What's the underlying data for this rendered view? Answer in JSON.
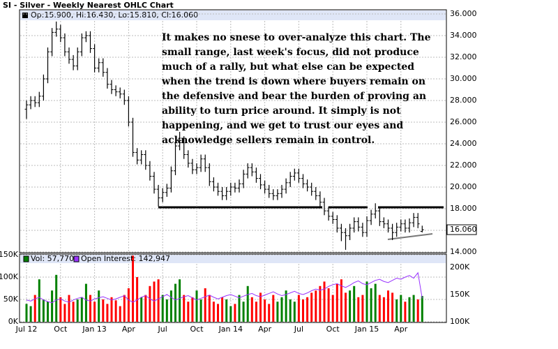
{
  "chart_data": [
    {
      "type": "ohlc",
      "title": "SI - Silver - Weekly Nearest OHLC Chart",
      "header": "Op:15.900, Hi:16.430, Lo:15.810, Cl:16.060",
      "last_label": "16.060",
      "color": "#000000",
      "annotation": "It makes no snese to over-analyze this chart.  The small range, last week's focus, did not produce much of a rally, but what else can be expected when the trend is down where buyers remain on the defensive and bear the burden of proving an ability to turn price around.  It simply is not happening, and we get to trust our eyes and acknowledge sellers remain in control.",
      "ylim": [
        14,
        36
      ],
      "yticks": [
        {
          "value": 14,
          "label": "14.000"
        },
        {
          "value": 16,
          "label": "16.000"
        },
        {
          "value": 18,
          "label": "18.000"
        },
        {
          "value": 20,
          "label": "20.000"
        },
        {
          "value": 22,
          "label": "22.000"
        },
        {
          "value": 24,
          "label": "24.000"
        },
        {
          "value": 26,
          "label": "26.000"
        },
        {
          "value": 28,
          "label": "28.000"
        },
        {
          "value": 30,
          "label": "30.000"
        },
        {
          "value": 32,
          "label": "32.000"
        },
        {
          "value": 34,
          "label": "34.000"
        },
        {
          "value": 36,
          "label": "36.000"
        }
      ],
      "open": [
        27.2,
        27.6,
        28.0,
        27.8,
        28.4,
        30.0,
        32.5,
        34.3,
        34.6,
        33.8,
        32.5,
        31.8,
        31.2,
        32.5,
        33.8,
        34.0,
        32.8,
        31.0,
        31.5,
        30.6,
        29.5,
        29.0,
        28.8,
        28.6,
        28.0,
        26.0,
        23.2,
        22.5,
        23.0,
        22.0,
        21.0,
        19.8,
        19.0,
        19.5,
        19.9,
        21.5,
        23.8,
        24.3,
        23.0,
        22.2,
        21.6,
        21.8,
        22.6,
        21.8,
        20.5,
        20.0,
        19.6,
        19.2,
        19.6,
        20.0,
        19.9,
        20.3,
        21.2,
        21.8,
        21.4,
        20.8,
        20.2,
        19.8,
        19.4,
        19.2,
        19.4,
        19.8,
        20.4,
        21.0,
        21.3,
        20.8,
        20.3,
        20.0,
        19.6,
        19.2,
        18.6,
        17.8,
        17.3,
        17.0,
        16.2,
        15.8,
        15.5,
        16.2,
        16.8,
        16.3,
        15.8,
        16.9,
        17.5,
        17.8,
        16.8,
        16.6,
        16.2,
        15.8,
        16.3,
        16.6,
        16.2,
        16.7,
        17.2,
        15.9
      ],
      "high": [
        28.0,
        28.4,
        28.4,
        28.8,
        30.4,
        32.9,
        34.7,
        35.3,
        35.0,
        34.2,
        32.9,
        32.2,
        32.9,
        34.2,
        34.4,
        34.4,
        33.2,
        31.9,
        31.9,
        31.0,
        29.9,
        29.4,
        29.2,
        29.0,
        28.4,
        26.4,
        23.6,
        23.4,
        23.4,
        22.4,
        21.4,
        20.2,
        19.9,
        20.3,
        21.9,
        24.2,
        25.1,
        24.7,
        23.4,
        22.6,
        22.2,
        23.0,
        23.0,
        22.2,
        20.9,
        20.4,
        20.0,
        20.0,
        20.4,
        20.4,
        20.7,
        21.6,
        22.2,
        22.2,
        21.8,
        21.2,
        20.6,
        20.2,
        19.8,
        19.8,
        20.2,
        20.8,
        21.4,
        21.7,
        21.7,
        21.2,
        20.7,
        20.4,
        20.0,
        19.6,
        19.0,
        18.2,
        17.7,
        17.4,
        16.6,
        16.2,
        16.6,
        17.2,
        17.2,
        16.7,
        17.3,
        17.9,
        18.5,
        18.2,
        17.2,
        17.0,
        16.6,
        16.7,
        17.0,
        17.0,
        17.1,
        17.6,
        17.6,
        16.43
      ],
      "low": [
        26.3,
        27.2,
        27.4,
        27.4,
        28.0,
        29.6,
        32.1,
        33.9,
        33.4,
        32.1,
        31.4,
        30.8,
        30.8,
        32.1,
        33.4,
        32.4,
        30.6,
        30.6,
        30.2,
        29.1,
        28.6,
        28.4,
        28.2,
        27.6,
        25.6,
        22.8,
        22.1,
        22.1,
        21.6,
        20.6,
        19.4,
        18.2,
        18.6,
        19.1,
        19.5,
        21.1,
        23.4,
        22.6,
        21.8,
        21.2,
        21.2,
        21.4,
        21.4,
        20.1,
        19.6,
        19.2,
        18.8,
        18.8,
        19.2,
        19.5,
        19.5,
        19.9,
        20.8,
        21.0,
        20.4,
        19.8,
        19.4,
        19.0,
        18.8,
        18.8,
        19.0,
        19.4,
        20.0,
        20.6,
        20.4,
        19.9,
        19.6,
        19.2,
        18.8,
        18.2,
        17.4,
        16.9,
        16.6,
        15.8,
        15.0,
        14.2,
        15.1,
        15.8,
        15.9,
        15.4,
        15.4,
        16.5,
        17.1,
        16.4,
        16.2,
        15.8,
        15.1,
        15.4,
        15.9,
        15.8,
        15.8,
        16.3,
        16.2,
        15.81
      ],
      "close": [
        27.6,
        28.0,
        27.8,
        28.4,
        30.0,
        32.5,
        34.3,
        34.6,
        33.8,
        32.5,
        31.8,
        31.2,
        32.5,
        33.8,
        34.0,
        32.8,
        31.0,
        31.5,
        30.6,
        29.5,
        29.0,
        28.8,
        28.6,
        28.0,
        26.0,
        23.2,
        22.5,
        23.0,
        22.0,
        21.0,
        19.8,
        19.0,
        19.5,
        19.9,
        21.5,
        23.8,
        24.3,
        23.0,
        22.2,
        21.6,
        21.8,
        22.6,
        21.8,
        20.5,
        20.0,
        19.6,
        19.2,
        19.6,
        20.0,
        19.9,
        20.3,
        21.2,
        21.8,
        21.4,
        20.8,
        20.2,
        19.8,
        19.4,
        19.2,
        19.4,
        19.8,
        20.4,
        21.0,
        21.3,
        20.8,
        20.3,
        20.0,
        19.6,
        19.2,
        18.6,
        17.8,
        17.3,
        17.0,
        16.2,
        15.8,
        15.5,
        16.2,
        16.8,
        16.3,
        15.8,
        16.9,
        17.5,
        17.8,
        16.8,
        16.6,
        16.2,
        15.8,
        16.3,
        16.6,
        16.2,
        16.7,
        17.2,
        16.6,
        16.06
      ]
    },
    {
      "type": "bar",
      "up_color": "#008000",
      "down_color": "#ff0000",
      "ylim": [
        0,
        150000
      ],
      "yticks": [
        {
          "value": 0,
          "label": "0K"
        },
        {
          "value": 50000,
          "label": "50K"
        },
        {
          "value": 100000,
          "label": "100K"
        },
        {
          "value": 150000,
          "label": "150K"
        }
      ],
      "y2lim": [
        100000,
        223000
      ],
      "y2ticks": [
        {
          "value": 100000,
          "label": "100K"
        },
        {
          "value": 150000,
          "label": "150K"
        },
        {
          "value": 200000,
          "label": "200K"
        }
      ],
      "xticks": [
        {
          "value": 0,
          "label": "Jul 12"
        },
        {
          "value": 8,
          "label": "Oct"
        },
        {
          "value": 16,
          "label": "Jan 13"
        },
        {
          "value": 24,
          "label": "Apr"
        },
        {
          "value": 32,
          "label": "Jul"
        },
        {
          "value": 40,
          "label": "Oct"
        },
        {
          "value": 48,
          "label": "Jan 14"
        },
        {
          "value": 56,
          "label": "Apr"
        },
        {
          "value": 64,
          "label": "Jul"
        },
        {
          "value": 72,
          "label": "Oct"
        },
        {
          "value": 80,
          "label": "Jan 15"
        },
        {
          "value": 88,
          "label": "Apr"
        }
      ],
      "series": [
        {
          "name": "Vol: 57,770",
          "color": "#008000",
          "values": [
            40000,
            35000,
            60000,
            95000,
            50000,
            45000,
            70000,
            105000,
            55000,
            40000,
            60000,
            45000,
            50000,
            55000,
            85000,
            60000,
            45000,
            70000,
            50000,
            40000,
            55000,
            48000,
            35000,
            60000,
            75000,
            148000,
            100000,
            55000,
            60000,
            80000,
            90000,
            95000,
            60000,
            50000,
            70000,
            85000,
            95000,
            60000,
            45000,
            55000,
            70000,
            50000,
            75000,
            60000,
            45000,
            40000,
            55000,
            50000,
            35000,
            40000,
            60000,
            45000,
            80000,
            55000,
            45000,
            65000,
            50000,
            40000,
            60000,
            45000,
            55000,
            70000,
            50000,
            45000,
            60000,
            50000,
            55000,
            65000,
            70000,
            80000,
            90000,
            75000,
            60000,
            85000,
            95000,
            65000,
            70000,
            80000,
            55000,
            60000,
            90000,
            75000,
            85000,
            60000,
            55000,
            70000,
            65000,
            50000,
            60000,
            45000,
            55000,
            60000,
            50000,
            57770
          ]
        },
        {
          "name": "Open Interest: 142,947",
          "color": "#9933ff",
          "axis": "y2",
          "values": [
            140000,
            138000,
            142000,
            145000,
            140000,
            137000,
            135000,
            140000,
            142000,
            138000,
            136000,
            140000,
            143000,
            145000,
            140000,
            138000,
            142000,
            144000,
            146000,
            143000,
            140000,
            142000,
            145000,
            148000,
            140000,
            136000,
            140000,
            145000,
            148000,
            142000,
            138000,
            142000,
            146000,
            150000,
            145000,
            140000,
            143000,
            146000,
            148000,
            144000,
            140000,
            143000,
            146000,
            149000,
            145000,
            142000,
            145000,
            148000,
            150000,
            147000,
            144000,
            147000,
            150000,
            152000,
            148000,
            146000,
            149000,
            152000,
            155000,
            151000,
            148000,
            150000,
            153000,
            156000,
            152000,
            150000,
            153000,
            157000,
            160000,
            158000,
            160000,
            165000,
            168000,
            170000,
            166000,
            163000,
            167000,
            172000,
            175000,
            170000,
            168000,
            172000,
            176000,
            178000,
            174000,
            172000,
            176000,
            180000,
            178000,
            182000,
            185000,
            180000,
            190000,
            142947
          ]
        }
      ]
    }
  ]
}
